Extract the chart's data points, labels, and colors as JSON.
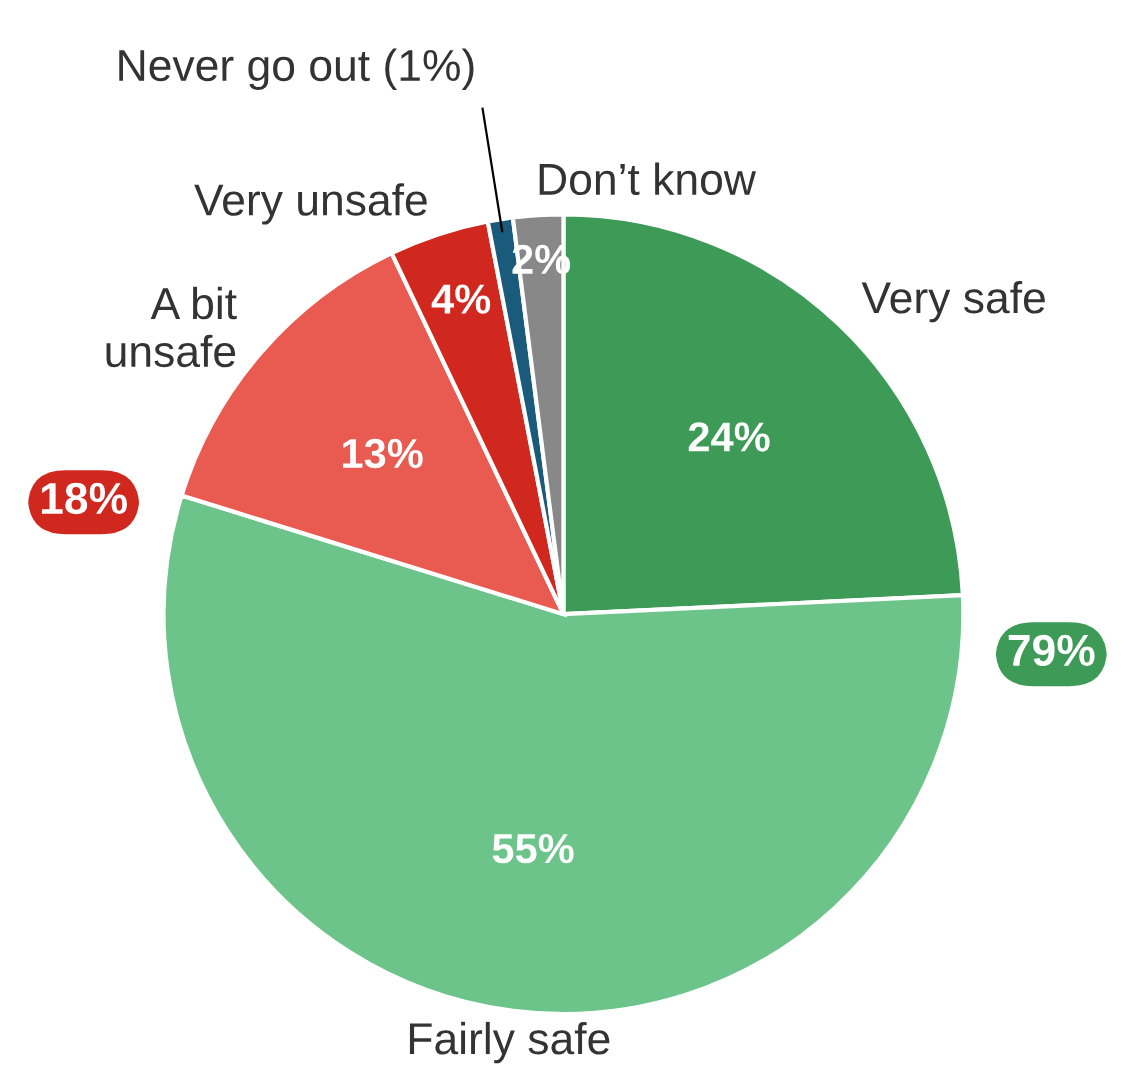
{
  "chart_data": {
    "type": "pie",
    "categories": [
      "Very safe",
      "Fairly safe",
      "A bit\nunsafe",
      "Very unsafe",
      "Never go out (1%)",
      "Don’t know"
    ],
    "values": [
      24,
      55,
      13,
      4,
      1,
      2
    ],
    "colors": [
      "#3d9a57",
      "#6cc48a",
      "#e95a50",
      "#d0281e",
      "#1a5a7a",
      "#888888"
    ],
    "value_labels": [
      "24%",
      "55%",
      "13%",
      "4%",
      null,
      "2%"
    ],
    "annotations": [
      "79%",
      "18%"
    ]
  }
}
